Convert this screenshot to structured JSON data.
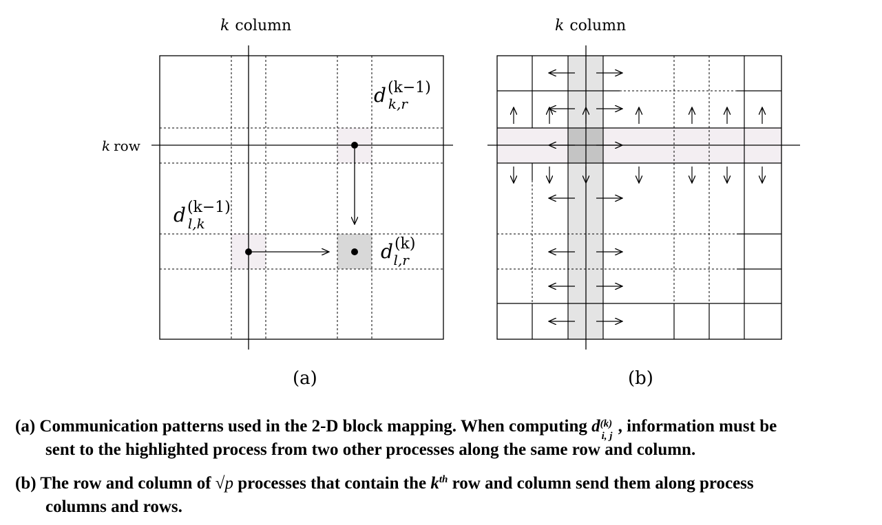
{
  "panel_a": {
    "column_label_var": "k",
    "column_label_text": "column",
    "row_label_var": "k",
    "row_label_text": "row",
    "label": "(a)",
    "terms": {
      "top_right": {
        "base": "d",
        "sup": "(k−1)",
        "sub": "k,r"
      },
      "left": {
        "base": "d",
        "sup": "(k−1)",
        "sub": "l,k"
      },
      "result": {
        "base": "d",
        "sup": "(k)",
        "sub": "l,r"
      }
    }
  },
  "panel_b": {
    "column_label_var": "k",
    "column_label_text": "column",
    "label": "(b)"
  },
  "captions": {
    "a_prefix": "(a) Communication patterns used in the 2-D block mapping. When computing",
    "a_var_base": "d",
    "a_var_sup": "(k)",
    "a_var_sub": "i, j",
    "a_suffix": ", information must be",
    "a_line2": "sent to the highlighted process from two other processes along the same row and column.",
    "b_prefix": "(b) The row and column of",
    "b_sqrt": "√",
    "b_p": "p",
    "b_mid": "processes that contain the",
    "b_k": "k",
    "b_th": "th",
    "b_suffix": "row and column send them along process",
    "b_line2": "columns and rows."
  }
}
